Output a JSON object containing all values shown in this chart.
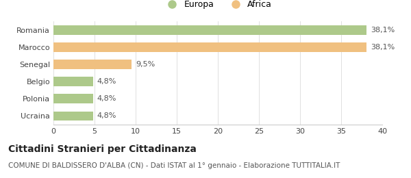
{
  "categories": [
    "Romania",
    "Marocco",
    "Senegal",
    "Belgio",
    "Polonia",
    "Ucraina"
  ],
  "values": [
    38.1,
    38.1,
    9.5,
    4.8,
    4.8,
    4.8
  ],
  "labels": [
    "38,1%",
    "38,1%",
    "9,5%",
    "4,8%",
    "4,8%",
    "4,8%"
  ],
  "colors": [
    "#adc98a",
    "#f0c080",
    "#f0c080",
    "#adc98a",
    "#adc98a",
    "#adc98a"
  ],
  "legend_labels": [
    "Europa",
    "Africa"
  ],
  "legend_colors": [
    "#adc98a",
    "#f0c080"
  ],
  "xlim": [
    0,
    40
  ],
  "xticks": [
    0,
    5,
    10,
    15,
    20,
    25,
    30,
    35,
    40
  ],
  "title": "Cittadini Stranieri per Cittadinanza",
  "subtitle": "COMUNE DI BALDISSERO D'ALBA (CN) - Dati ISTAT al 1° gennaio - Elaborazione TUTTITALIA.IT",
  "background_color": "#ffffff",
  "bar_height": 0.55,
  "label_fontsize": 8,
  "title_fontsize": 10,
  "subtitle_fontsize": 7.5,
  "tick_fontsize": 8,
  "ytick_fontsize": 8
}
